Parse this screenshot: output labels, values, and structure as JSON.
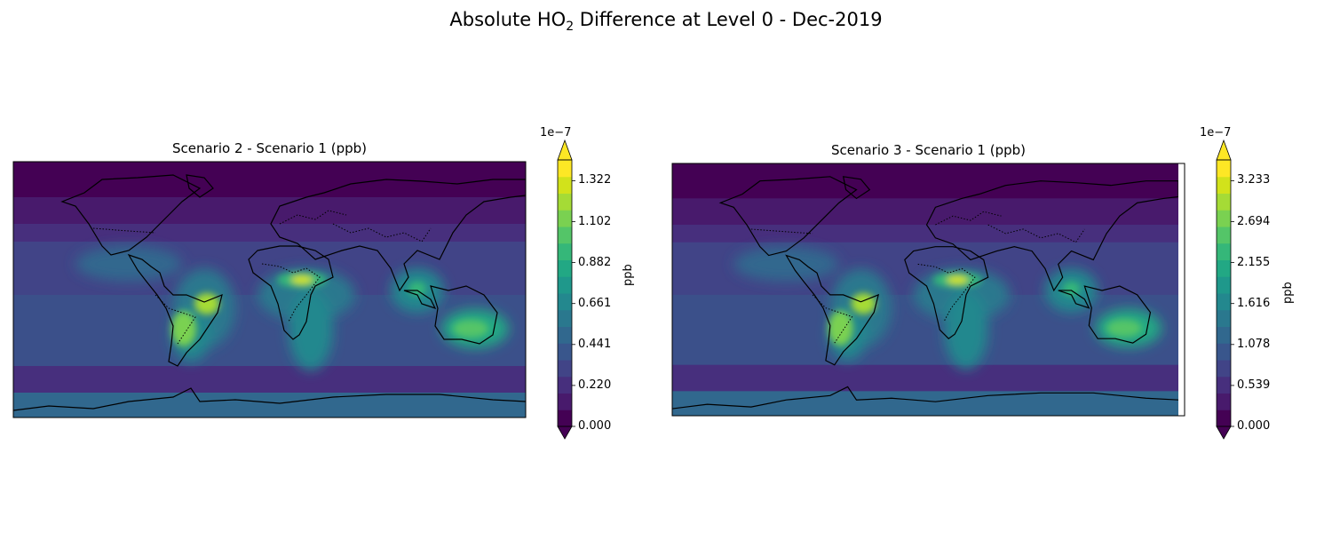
{
  "figure": {
    "title_prefix": "Absolute HO",
    "title_subscript": "2",
    "title_suffix": " Difference at Level 0 - Dec-2019"
  },
  "colors": {
    "viridis": [
      "#440154",
      "#481a6c",
      "#472f7d",
      "#414487",
      "#39568c",
      "#31688e",
      "#2a788e",
      "#23888e",
      "#1f988b",
      "#22a884",
      "#35b779",
      "#54c568",
      "#7ad151",
      "#a5db36",
      "#d2e21b",
      "#fde725"
    ],
    "coastline": "#000000"
  },
  "panels": [
    {
      "title": "Scenario 2 - Scenario 1 (ppb)",
      "colorbar": {
        "label": "ppb",
        "multiplier": "1e−7",
        "ticks": [
          "0.000",
          "0.220",
          "0.441",
          "0.661",
          "0.882",
          "1.102",
          "1.322"
        ]
      }
    },
    {
      "title": "Scenario 3 - Scenario 1 (ppb)",
      "colorbar": {
        "label": "ppb",
        "multiplier": "1e−7",
        "ticks": [
          "0.000",
          "0.539",
          "1.078",
          "1.616",
          "2.155",
          "2.694",
          "3.233"
        ]
      }
    }
  ]
}
